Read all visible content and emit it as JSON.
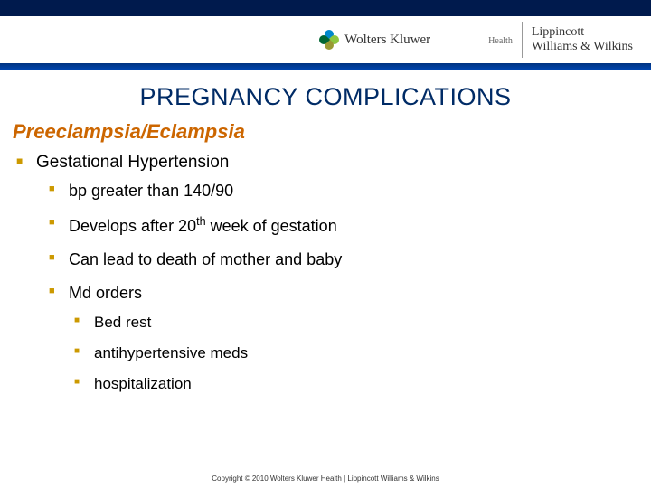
{
  "header": {
    "brand_left_main": "Wolters Kluwer",
    "brand_left_sub": "Health",
    "brand_right_line1": "Lippincott",
    "brand_right_line2": "Williams & Wilkins",
    "band_color_top": "#001a4d",
    "band_color_bottom": "#003380"
  },
  "title": "PREGNANCY COMPLICATIONS",
  "subtitle": "Preeclampsia/Eclampsia",
  "bullets": {
    "lvl1_0": "Gestational Hypertension",
    "lvl2_0": "bp greater than 140/90",
    "lvl2_1_pre": "Develops after 20",
    "lvl2_1_sup": "th",
    "lvl2_1_post": " week of gestation",
    "lvl2_2": "Can lead to death of mother and baby",
    "lvl2_3": "Md orders",
    "lvl3_0": "Bed rest",
    "lvl3_1": "antihypertensive meds",
    "lvl3_2": "hospitalization"
  },
  "colors": {
    "title_color": "#002b66",
    "subtitle_color": "#cc6600",
    "bullet_marker": "#cc9900",
    "body_text": "#000000"
  },
  "fonts": {
    "title_family": "Trebuchet MS",
    "title_size_pt": 20,
    "subtitle_size_pt": 17,
    "body_size_pt": 14
  },
  "copyright": "Copyright © 2010 Wolters Kluwer Health | Lippincott Williams & Wilkins"
}
